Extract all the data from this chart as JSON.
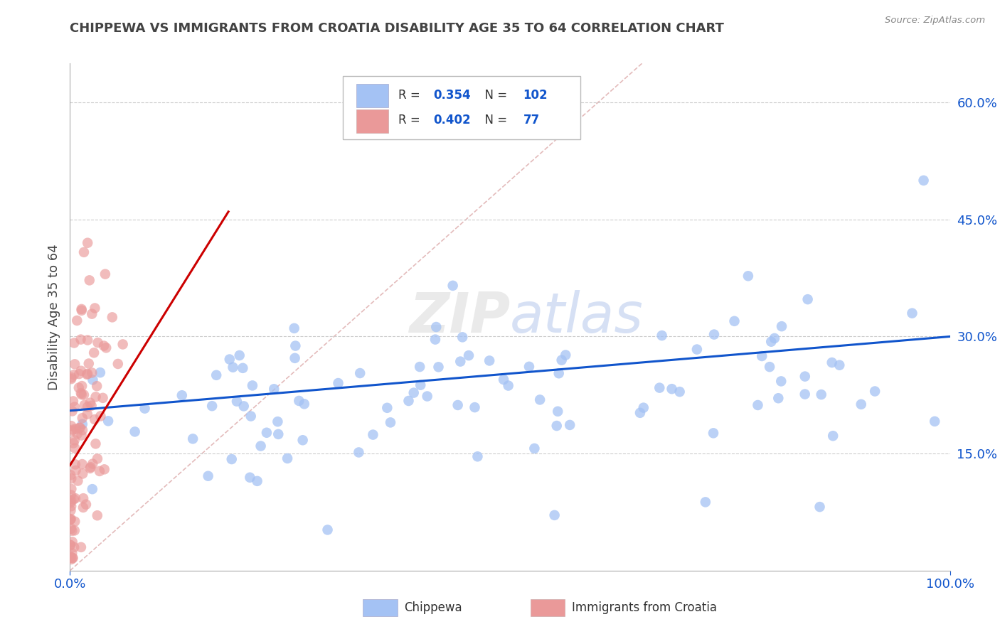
{
  "title": "CHIPPEWA VS IMMIGRANTS FROM CROATIA DISABILITY AGE 35 TO 64 CORRELATION CHART",
  "source": "Source: ZipAtlas.com",
  "ylabel": "Disability Age 35 to 64",
  "xlim": [
    0.0,
    1.0
  ],
  "ylim": [
    0.0,
    0.65
  ],
  "ytick_positions": [
    0.15,
    0.3,
    0.45,
    0.6
  ],
  "ytick_labels": [
    "15.0%",
    "30.0%",
    "45.0%",
    "60.0%"
  ],
  "blue_R": 0.354,
  "blue_N": 102,
  "pink_R": 0.402,
  "pink_N": 77,
  "blue_color": "#a4c2f4",
  "pink_color": "#ea9999",
  "blue_line_color": "#1155cc",
  "pink_line_color": "#cc0000",
  "ref_line_color": "#ddaaaa",
  "legend_label_blue": "Chippewa",
  "legend_label_pink": "Immigrants from Croatia",
  "watermark": "ZIPatlas",
  "title_color": "#434343",
  "source_color": "#888888",
  "axis_label_color": "#434343",
  "tick_color": "#1155cc"
}
